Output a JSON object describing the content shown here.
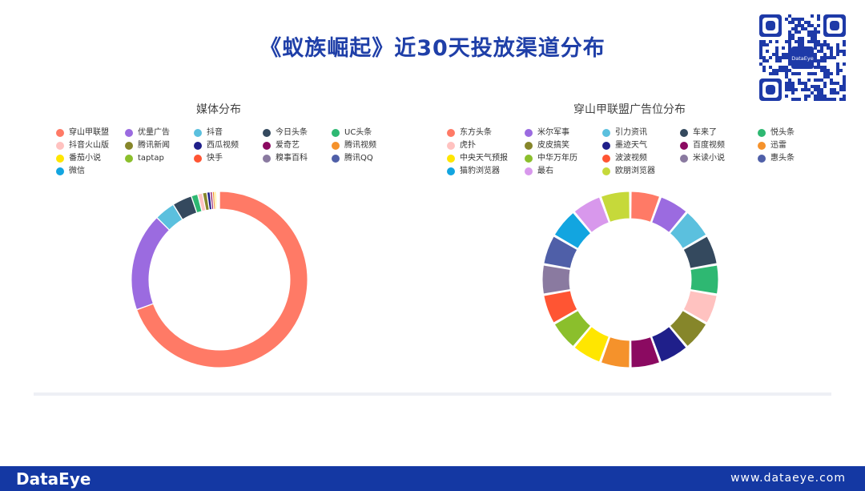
{
  "title": "《蚁族崛起》近30天投放渠道分布",
  "footer": {
    "logo": "DataEye",
    "url": "www.dataeye.com"
  },
  "qr": {
    "badge": "DataEye"
  },
  "chart_data": [
    {
      "type": "pie",
      "title": "媒体分布",
      "donut": true,
      "legend_position": "top",
      "categories": [
        "穿山甲联盟",
        "优量广告",
        "抖音",
        "今日头条",
        "UC头条",
        "抖音火山版",
        "腾讯新闻",
        "西瓜视频",
        "爱奇艺",
        "腾讯视频",
        "番茄小说",
        "taptap",
        "快手",
        "糗事百科",
        "腾讯QQ",
        "微信"
      ],
      "values": [
        69.5,
        18.0,
        3.8,
        3.6,
        1.2,
        0.9,
        0.8,
        0.6,
        0.4,
        0.4,
        0.3,
        0.2,
        0.1,
        0.1,
        0.1,
        0.1
      ],
      "colors": [
        "#ff7a66",
        "#9b6be0",
        "#5bc0de",
        "#34495e",
        "#2eb872",
        "#ffc2c0",
        "#86862a",
        "#1f1f8a",
        "#8b0a61",
        "#f5922b",
        "#ffe600",
        "#8bbf2c",
        "#ff5533",
        "#8a7aa0",
        "#4f5fa8",
        "#12a5e0"
      ]
    },
    {
      "type": "pie",
      "title": "穿山甲联盟广告位分布",
      "donut": true,
      "legend_position": "top",
      "categories": [
        "东方头条",
        "米尔军事",
        "引力资讯",
        "车来了",
        "悦头条",
        "虎扑",
        "皮皮搞笑",
        "墨迹天气",
        "百度视频",
        "迅雷",
        "中央天气预报",
        "中华万年历",
        "波波视频",
        "米读小说",
        "惠头条",
        "猫豹浏览器",
        "最右",
        "欧朋浏览器"
      ],
      "values": [
        5.6,
        5.6,
        5.6,
        5.6,
        5.6,
        5.6,
        5.6,
        5.6,
        5.6,
        5.6,
        5.6,
        5.6,
        5.6,
        5.6,
        5.6,
        5.6,
        5.6,
        5.6
      ],
      "colors": [
        "#ff7a66",
        "#9b6be0",
        "#5bc0de",
        "#34495e",
        "#2eb872",
        "#ffc2c0",
        "#86862a",
        "#1f1f8a",
        "#8b0a61",
        "#f5922b",
        "#ffe600",
        "#8bbf2c",
        "#ff5533",
        "#8a7aa0",
        "#4f5fa8",
        "#12a5e0",
        "#d898ec",
        "#c6d93a"
      ]
    }
  ]
}
